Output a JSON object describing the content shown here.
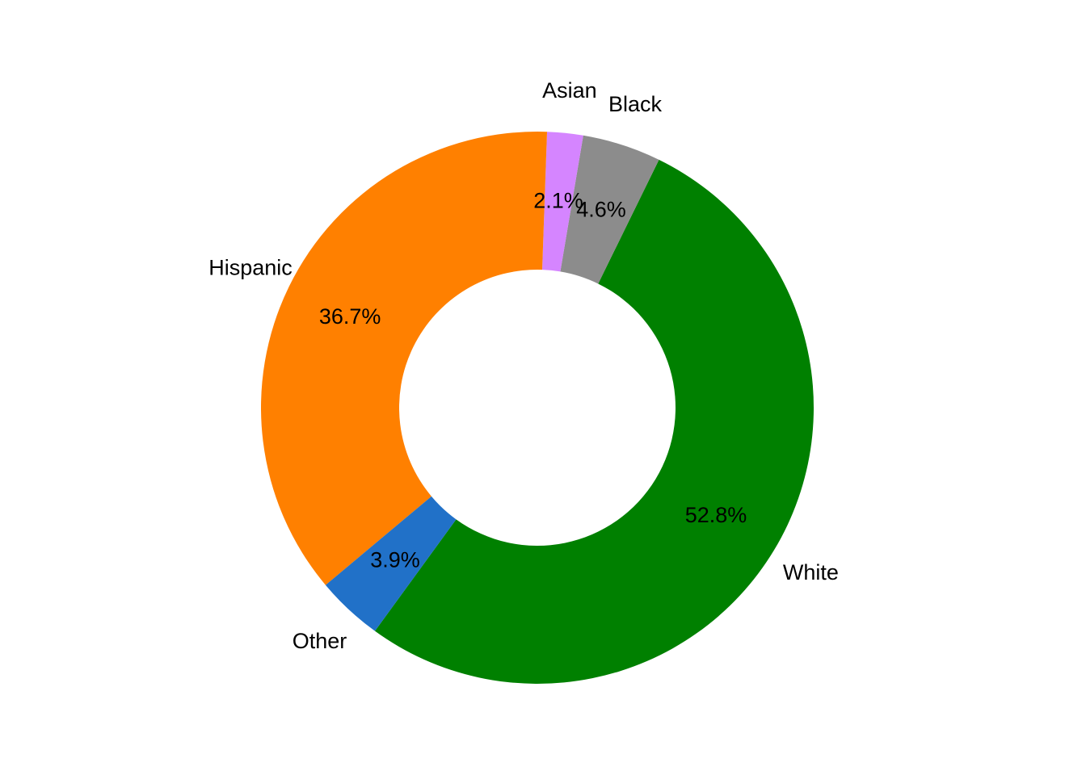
{
  "chart_data": {
    "type": "pie",
    "style": "donut",
    "title": "",
    "legend": "none",
    "categories": [
      "White",
      "Hispanic",
      "Other",
      "Asian",
      "Black"
    ],
    "values": [
      52.8,
      36.7,
      3.9,
      2.1,
      4.6
    ],
    "value_labels": [
      "52.8%",
      "36.7%",
      "3.9%",
      "2.1%",
      "4.6%"
    ],
    "colors": [
      "#008000",
      "#FF8000",
      "#2171C8",
      "#D585FF",
      "#8C8C8C"
    ],
    "slices": [
      {
        "label": "White",
        "value": 52.8,
        "value_label": "52.8%",
        "color": "#008000"
      },
      {
        "label": "Black",
        "value": 4.6,
        "value_label": "4.6%",
        "color": "#8C8C8C"
      },
      {
        "label": "Asian",
        "value": 2.1,
        "value_label": "2.1%",
        "color": "#D585FF"
      },
      {
        "label": "Hispanic",
        "value": 36.7,
        "value_label": "36.7%",
        "color": "#FF8000"
      },
      {
        "label": "Other",
        "value": 3.9,
        "value_label": "3.9%",
        "color": "#2171C8"
      }
    ]
  }
}
